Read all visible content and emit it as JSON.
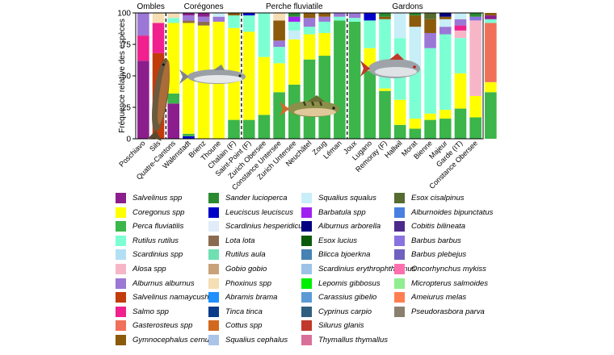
{
  "chart_data": {
    "type": "bar",
    "stacked": true,
    "ylabel": "Fréquence relative des espèces",
    "ylim": [
      0,
      100
    ],
    "yticks": [
      0,
      25,
      50,
      75,
      100
    ],
    "groups": [
      {
        "label": "Ombles",
        "start": 0,
        "end": 1
      },
      {
        "label": "Corégones",
        "start": 2,
        "end": 6
      },
      {
        "label": "Perche fluviatile",
        "start": 7,
        "end": 13
      },
      {
        "label": "Gardons",
        "start": 14,
        "end": 21
      }
    ],
    "categories": [
      "Poschiavo",
      "Sils",
      "Quatre-Cantons",
      "Walenstadt",
      "Brienz",
      "Thoune",
      "Chalain (F)",
      "Saint-Point (F)",
      "Zurich Obersee",
      "Constance Untersee",
      "Zurich Untersee",
      "Neuchâtel",
      "Zoug",
      "Léman",
      "Joux",
      "Lugano",
      "Remoray (F)",
      "Hallwil",
      "Morat",
      "Bienne",
      "Majeur",
      "Garde (IT)",
      "Constance Obersee"
    ],
    "stacks": [
      [
        [
          "Salvelinus spp",
          62
        ],
        [
          "Salmo spp",
          20
        ],
        [
          "Alburnus alburnus",
          18
        ]
      ],
      [
        [
          "Salvelinus namaycush",
          68
        ],
        [
          "Salmo spp",
          24
        ],
        [
          "Phoxinus spp",
          8
        ]
      ],
      [
        [
          "Salvelinus spp",
          28
        ],
        [
          "Perca fluviatilis",
          8
        ],
        [
          "Coregonus spp",
          56
        ],
        [
          "Rutilus rutilus",
          4
        ],
        [
          "Phoxinus spp",
          4
        ]
      ],
      [
        [
          "Leuciscus leuciscus",
          2
        ],
        [
          "Perca fluviatilis",
          2
        ],
        [
          "Coregonus spp",
          88
        ],
        [
          "Lota lota",
          2
        ],
        [
          "Alburnus alburnus",
          4
        ],
        [
          "Salvelinus spp",
          2
        ]
      ],
      [
        [
          "Coregonus spp",
          90
        ],
        [
          "Lota lota",
          3
        ],
        [
          "Alburnus alburnus",
          4
        ],
        [
          "Salvelinus spp",
          3
        ]
      ],
      [
        [
          "Coregonus spp",
          93
        ],
        [
          "Alburnus alburnus",
          4
        ],
        [
          "Squalius squalus",
          3
        ]
      ],
      [
        [
          "Perca fluviatilis",
          15
        ],
        [
          "Coregonus spp",
          73
        ],
        [
          "Rutilus rutilus",
          10
        ],
        [
          "Gymnocephalus cernua",
          2
        ]
      ],
      [
        [
          "Perca fluviatilis",
          15
        ],
        [
          "Coregonus spp",
          70
        ],
        [
          "Rutilus rutilus",
          13
        ],
        [
          "Leuciscus leuciscus",
          2
        ]
      ],
      [
        [
          "Perca fluviatilis",
          19
        ],
        [
          "Coregonus spp",
          46
        ],
        [
          "Rutilus rutilus",
          35
        ]
      ],
      [
        [
          "Perca fluviatilis",
          37
        ],
        [
          "Coregonus spp",
          23
        ],
        [
          "Rutilus rutilus",
          13
        ],
        [
          "Alburnus alburnus",
          5
        ],
        [
          "Gymnocephalus cernua",
          16
        ],
        [
          "Phoxinus spp",
          6
        ]
      ],
      [
        [
          "Perca fluviatilis",
          43
        ],
        [
          "Coregonus spp",
          36
        ],
        [
          "Squalius squalus",
          7
        ],
        [
          "Rutilus rutilus",
          7
        ],
        [
          "Barbatula spp",
          4
        ],
        [
          "Sander lucioperca",
          3
        ]
      ],
      [
        [
          "Perca fluviatilis",
          63
        ],
        [
          "Coregonus spp",
          20
        ],
        [
          "Rutilus rutilus",
          6
        ],
        [
          "Alburnus alburnus",
          7
        ],
        [
          "Gymnocephalus cernua",
          4
        ]
      ],
      [
        [
          "Perca fluviatilis",
          66
        ],
        [
          "Coregonus spp",
          18
        ],
        [
          "Rutilus rutilus",
          9
        ],
        [
          "Alburnus alburnus",
          4
        ],
        [
          "Gymnocephalus cernua",
          3
        ]
      ],
      [
        [
          "Perca fluviatilis",
          94
        ],
        [
          "Rutilus rutilus",
          3
        ],
        [
          "Alburnus alburnus",
          3
        ]
      ],
      [
        [
          "Perca fluviatilis",
          93
        ],
        [
          "Rutilus rutilus",
          3
        ],
        [
          "Alburnus alburnus",
          4
        ]
      ],
      [
        [
          "Perca fluviatilis",
          54
        ],
        [
          "Coregonus spp",
          18
        ],
        [
          "Rutilus rutilus",
          22
        ],
        [
          "Leuciscus leuciscus",
          6
        ]
      ],
      [
        [
          "Perca fluviatilis",
          38
        ],
        [
          "Coregonus spp",
          2
        ],
        [
          "Rutilus rutilus",
          55
        ],
        [
          "Gymnocephalus cernua",
          2
        ],
        [
          "Sander lucioperca",
          3
        ]
      ],
      [
        [
          "Perca fluviatilis",
          11
        ],
        [
          "Coregonus spp",
          20
        ],
        [
          "Rutilus rutilus",
          49
        ],
        [
          "Squalius squalus",
          20
        ]
      ],
      [
        [
          "Perca fluviatilis",
          8
        ],
        [
          "Coregonus spp",
          8
        ],
        [
          "Rutilus rutilus",
          40
        ],
        [
          "Squalius squalus",
          33
        ],
        [
          "Gymnocephalus cernua",
          9
        ],
        [
          "Sander lucioperca",
          2
        ]
      ],
      [
        [
          "Perca fluviatilis",
          15
        ],
        [
          "Coregonus spp",
          5
        ],
        [
          "Rutilus rutilus",
          52
        ],
        [
          "Alburnus alburnus",
          12
        ],
        [
          "Gymnocephalus cernua",
          11
        ],
        [
          "Esox cisalpinus",
          5
        ]
      ],
      [
        [
          "Perca fluviatilis",
          16
        ],
        [
          "Coregonus spp",
          7
        ],
        [
          "Rutilus rutilus",
          60
        ],
        [
          "Alburnus alburnus",
          6
        ],
        [
          "Squalius squalus",
          6
        ],
        [
          "Gymnocephalus cernua",
          2
        ],
        [
          "Alburnus arborella",
          3
        ]
      ],
      [
        [
          "Perca fluviatilis",
          24
        ],
        [
          "Coregonus spp",
          28
        ],
        [
          "Rutilus rutilus",
          28
        ],
        [
          "Alosa spp",
          6
        ],
        [
          "Salmo spp",
          4
        ],
        [
          "Alburnus alburnus",
          5
        ],
        [
          "Squalius squalus",
          5
        ]
      ],
      [
        [
          "Perca fluviatilis",
          17
        ],
        [
          "Coregonus spp",
          17
        ],
        [
          "Alosa spp",
          60
        ],
        [
          "Barbus barbus",
          3
        ],
        [
          "Sander lucioperca",
          3
        ]
      ],
      [
        [
          "Perca fluviatilis",
          37
        ],
        [
          "Coregonus spp",
          8
        ],
        [
          "Gasterosteus spp",
          47
        ],
        [
          "Rutilus rutilus",
          3
        ],
        [
          "Salvelinus spp",
          3
        ],
        [
          "Gymnocephalus cernua",
          2
        ]
      ]
    ],
    "legend": [
      [
        {
          "name": "Salvelinus spp",
          "color": "#8b1e8c"
        },
        {
          "name": "Coregonus spp",
          "color": "#ffff00"
        },
        {
          "name": "Perca fluviatilis",
          "color": "#3cb54a"
        },
        {
          "name": "Rutilus rutilus",
          "color": "#7dffd4"
        },
        {
          "name": "Scardinius spp",
          "color": "#b3dff5"
        },
        {
          "name": "Alosa spp",
          "color": "#f7b6c8"
        },
        {
          "name": "Alburnus alburnus",
          "color": "#9b77d6"
        },
        {
          "name": "Salvelinus namaycush",
          "color": "#c23b0b"
        },
        {
          "name": "Salmo spp",
          "color": "#f0208f"
        },
        {
          "name": "Gasterosteus spp",
          "color": "#f0705a"
        },
        {
          "name": "Gymnocephalus cernua",
          "color": "#8b5a0b"
        }
      ],
      [
        {
          "name": "Sander lucioperca",
          "color": "#2a8a30"
        },
        {
          "name": "Leuciscus leuciscus",
          "color": "#0000c8"
        },
        {
          "name": "Scardinius hesperidicus",
          "color": "#e0ecf8"
        },
        {
          "name": "Lota lota",
          "color": "#8b6b4f"
        },
        {
          "name": "Rutilus aula",
          "color": "#6fe0b2"
        },
        {
          "name": "Gobio gobio",
          "color": "#c9a27a"
        },
        {
          "name": "Phoxinus spp",
          "color": "#f5deb3"
        },
        {
          "name": "Abramis brama",
          "color": "#1e90ff"
        },
        {
          "name": "Tinca tinca",
          "color": "#0b3b8b"
        },
        {
          "name": "Cottus spp",
          "color": "#d2691e"
        },
        {
          "name": "Squalius cephalus",
          "color": "#a9c4e8"
        }
      ],
      [
        {
          "name": "Squalius squalus",
          "color": "#c8eef8"
        },
        {
          "name": "Barbatula spp",
          "color": "#a020f0"
        },
        {
          "name": "Alburnus arborella",
          "color": "#000080"
        },
        {
          "name": "Esox lucius",
          "color": "#0b5a0b"
        },
        {
          "name": "Blicca bjoerkna",
          "color": "#4682b4"
        },
        {
          "name": "Scardinius erythrophthalmus",
          "color": "#9cc3e6"
        },
        {
          "name": "Lepomis gibbosus",
          "color": "#00ee00"
        },
        {
          "name": "Carassius gibelio",
          "color": "#5b9bd5"
        },
        {
          "name": "Cyprinus carpio",
          "color": "#2f5f7f"
        },
        {
          "name": "Silurus glanis",
          "color": "#c0392b"
        },
        {
          "name": "Thymallus thymallus",
          "color": "#d9709a"
        }
      ],
      [
        {
          "name": "Esox cisalpinus",
          "color": "#556b2f"
        },
        {
          "name": "Alburnoides bipunctatus",
          "color": "#4a7fe0"
        },
        {
          "name": "Cobitis bilineata",
          "color": "#4b2a8b"
        },
        {
          "name": "Barbus barbus",
          "color": "#8a72e0"
        },
        {
          "name": "Barbus plebejus",
          "color": "#7060c0"
        },
        {
          "name": "Oncorhynchus mykiss",
          "color": "#ff6fae"
        },
        {
          "name": "Micropterus salmoides",
          "color": "#90ee90"
        },
        {
          "name": "Ameiurus melas",
          "color": "#ff7f50"
        },
        {
          "name": "Pseudorasbora parva",
          "color": "#8b8070"
        }
      ]
    ]
  }
}
